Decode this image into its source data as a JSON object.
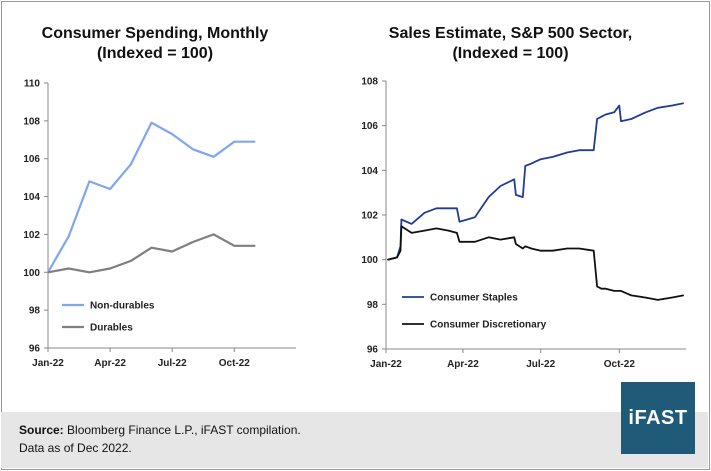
{
  "chart_data": [
    {
      "type": "line",
      "title": "Consumer Spending, Monthly\n(Indexed = 100)",
      "x": [
        "Jan-22",
        "Feb-22",
        "Mar-22",
        "Apr-22",
        "May-22",
        "Jun-22",
        "Jul-22",
        "Aug-22",
        "Sep-22",
        "Oct-22",
        "Nov-22"
      ],
      "xticks": [
        "Jan-22",
        "Apr-22",
        "Jul-22",
        "Oct-22"
      ],
      "ylim": [
        96,
        110
      ],
      "yticks": [
        "96",
        "98",
        "100",
        "102",
        "104",
        "106",
        "108",
        "110"
      ],
      "legend_position": "bottom-left",
      "series": [
        {
          "name": "Non-durables",
          "color": "#7fa7ef",
          "values": [
            100,
            101.9,
            104.8,
            104.4,
            105.7,
            107.9,
            107.3,
            106.5,
            106.1,
            106.9,
            106.9
          ]
        },
        {
          "name": "Durables",
          "color": "#7f7f7f",
          "values": [
            100,
            100.2,
            100.0,
            100.2,
            100.6,
            101.3,
            101.1,
            101.6,
            102.0,
            101.4,
            101.4
          ]
        }
      ]
    },
    {
      "type": "line",
      "title": "Sales Estimate, S&P 500 Sector,\n(Indexed = 100)",
      "x": [
        "2022-01-03",
        "2022-01-14",
        "2022-01-18",
        "2022-01-19",
        "2022-01-31",
        "2022-02-15",
        "2022-03-01",
        "2022-03-15",
        "2022-03-25",
        "2022-03-28",
        "2022-04-15",
        "2022-05-01",
        "2022-05-15",
        "2022-05-31",
        "2022-06-02",
        "2022-06-10",
        "2022-06-13",
        "2022-06-20",
        "2022-07-01",
        "2022-07-15",
        "2022-08-01",
        "2022-08-15",
        "2022-09-01",
        "2022-09-05",
        "2022-09-10",
        "2022-09-15",
        "2022-09-25",
        "2022-10-01",
        "2022-10-03",
        "2022-10-15",
        "2022-11-01",
        "2022-11-15",
        "2022-12-01",
        "2022-12-15"
      ],
      "xticks": [
        "Jan-22",
        "Apr-22",
        "Jul-22",
        "Oct-22"
      ],
      "ylim": [
        96,
        108
      ],
      "yticks": [
        "96",
        "98",
        "100",
        "102",
        "104",
        "106",
        "108"
      ],
      "legend_position": "bottom-left",
      "series": [
        {
          "name": "Consumer Staples",
          "color": "#1f3d96",
          "values": [
            100.0,
            100.1,
            100.6,
            101.8,
            101.6,
            102.1,
            102.3,
            102.3,
            102.3,
            101.7,
            101.9,
            102.8,
            103.3,
            103.6,
            102.9,
            102.8,
            104.2,
            104.3,
            104.5,
            104.6,
            104.8,
            104.9,
            104.9,
            106.3,
            106.4,
            106.5,
            106.6,
            106.9,
            106.2,
            106.3,
            106.6,
            106.8,
            106.9,
            107.0
          ]
        },
        {
          "name": "Consumer Discretionary",
          "color": "#111111",
          "values": [
            100.0,
            100.1,
            100.4,
            101.5,
            101.2,
            101.3,
            101.4,
            101.3,
            101.2,
            100.8,
            100.8,
            101.0,
            100.9,
            101.0,
            100.7,
            100.5,
            100.6,
            100.5,
            100.4,
            100.4,
            100.5,
            100.5,
            100.4,
            98.8,
            98.7,
            98.7,
            98.6,
            98.6,
            98.6,
            98.4,
            98.3,
            98.2,
            98.3,
            98.4
          ]
        }
      ]
    }
  ],
  "footer": {
    "source_label": "Source:",
    "source_text": " Bloomberg Finance L.P., iFAST compilation.",
    "date_text": "Data as of Dec 2022."
  },
  "logo": {
    "text": "iFAST",
    "color": "#1f5a78"
  }
}
